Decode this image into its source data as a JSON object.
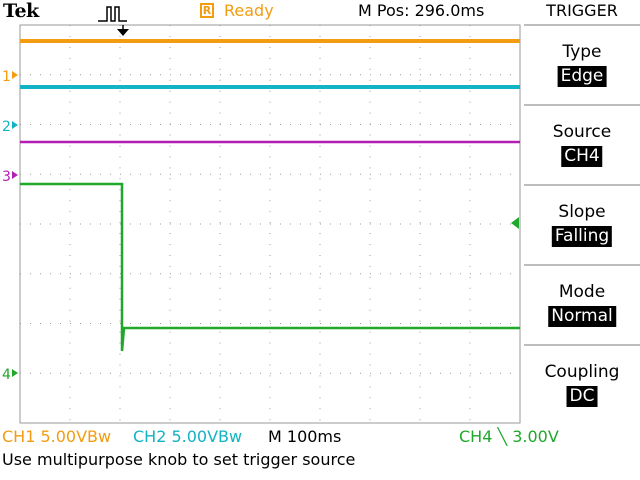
{
  "header": {
    "logo": "Tek",
    "trigger_icon": "pulse-trigger-icon",
    "state_icon_letter": "R",
    "state": "Ready",
    "mpos": "M Pos: 296.0ms"
  },
  "menu": {
    "title": "TRIGGER",
    "items": [
      {
        "label": "Type",
        "value": "Edge"
      },
      {
        "label": "Source",
        "value": "CH4"
      },
      {
        "label": "Slope",
        "value": "Falling"
      },
      {
        "label": "Mode",
        "value": "Normal"
      },
      {
        "label": "Coupling",
        "value": "DC"
      }
    ]
  },
  "channels": {
    "ch1": {
      "marker": "1",
      "color": "#f39c12"
    },
    "ch2": {
      "marker": "2",
      "color": "#12b3c4"
    },
    "ch3": {
      "marker": "3",
      "color": "#b31fb3"
    },
    "ch4": {
      "marker": "4",
      "color": "#1fa82a"
    }
  },
  "status": {
    "ch1": "CH1  5.00VBw",
    "ch2": "CH2  5.00VBw",
    "timebase": "M 100ms",
    "ch4": "CH4 ╲ 3.00V",
    "help": "Use multipurpose knob to set trigger source"
  },
  "colors": {
    "grid": "#9a9a9a",
    "menu_divider": "#bdbdbd",
    "background": "#ffffff"
  }
}
